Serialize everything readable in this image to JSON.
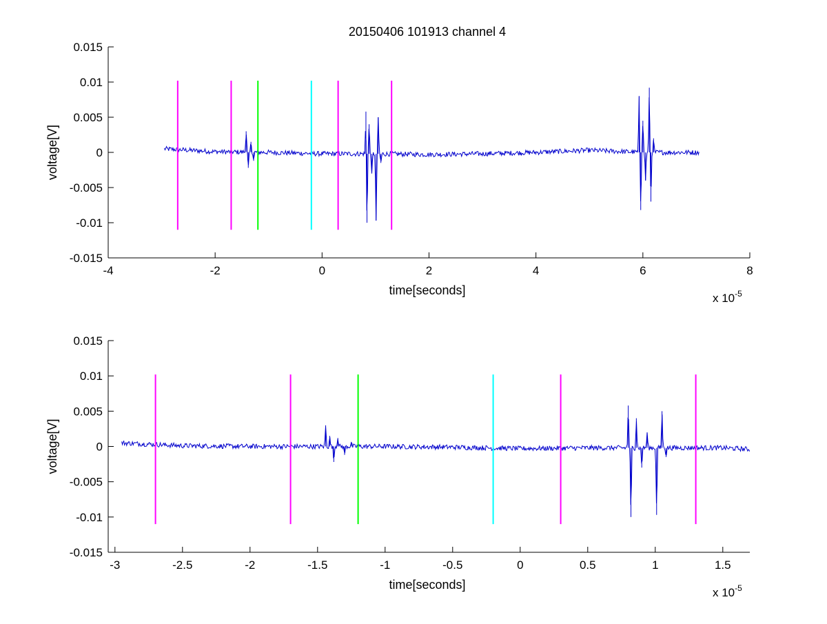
{
  "figure": {
    "title": "20150406 101913 channel 4",
    "colors": {
      "signal": "#0000cc",
      "magenta": "#ff00ff",
      "green": "#00ff00",
      "cyan": "#00ffff",
      "axes": "#000000"
    }
  },
  "chart_data": [
    {
      "type": "line",
      "title": "20150406 101913 channel 4",
      "xlabel": "time[seconds]",
      "ylabel": "voltage[V]",
      "x_multiplier_label": "x 10",
      "x_multiplier_exp": "-5",
      "xlim": [
        -4,
        8
      ],
      "ylim": [
        -0.015,
        0.015
      ],
      "x_unit_scale": 1e-05,
      "x_ticks": [
        -4,
        -2,
        0,
        2,
        4,
        6,
        8
      ],
      "x_tick_labels": [
        "-4",
        "-2",
        "0",
        "2",
        "4",
        "6",
        "8"
      ],
      "y_ticks": [
        -0.015,
        -0.01,
        -0.005,
        0,
        0.005,
        0.01,
        0.015
      ],
      "y_tick_labels": [
        "-0.015",
        "-0.01",
        "-0.005",
        "0",
        "0.005",
        "0.01",
        "0.015"
      ],
      "grid": false,
      "series": [
        {
          "color": "#0000cc",
          "x_range": [
            -2.95,
            7.05
          ],
          "baseline_points": [
            [
              -2.95,
              0.0005
            ],
            [
              -2.0,
              0.0001
            ],
            [
              -1.0,
              0.0
            ],
            [
              0.0,
              -0.0002
            ],
            [
              1.0,
              -0.0002
            ],
            [
              2.0,
              -0.0003
            ],
            [
              3.0,
              -0.0002
            ],
            [
              4.0,
              0.0
            ],
            [
              5.0,
              0.0003
            ],
            [
              6.0,
              0.0
            ],
            [
              7.05,
              0.0
            ]
          ],
          "bursts": [
            {
              "peaks": [
                [
                  -1.42,
                  0.003
                ],
                [
                  -1.38,
                  -0.0022
                ],
                [
                  -1.33,
                  0.0015
                ],
                [
                  -1.28,
                  -0.0012
                ]
              ]
            },
            {
              "peaks": [
                [
                  0.82,
                  0.0058
                ],
                [
                  0.84,
                  -0.01
                ],
                [
                  0.88,
                  0.004
                ],
                [
                  0.93,
                  -0.003
                ],
                [
                  1.01,
                  -0.0097
                ],
                [
                  1.05,
                  0.005
                ],
                [
                  1.1,
                  -0.0015
                ]
              ]
            },
            {
              "peaks": [
                [
                  5.93,
                  0.008
                ],
                [
                  5.96,
                  -0.0082
                ],
                [
                  6.0,
                  0.0045
                ],
                [
                  6.05,
                  -0.004
                ],
                [
                  6.12,
                  0.0092
                ],
                [
                  6.15,
                  -0.007
                ],
                [
                  6.2,
                  0.002
                ]
              ]
            }
          ]
        }
      ],
      "markers": [
        {
          "x": -2.7,
          "y_range": [
            -0.011,
            0.0102
          ],
          "color": "#ff00ff"
        },
        {
          "x": -1.7,
          "y_range": [
            -0.011,
            0.0102
          ],
          "color": "#ff00ff"
        },
        {
          "x": -1.2,
          "y_range": [
            -0.011,
            0.0102
          ],
          "color": "#00ff00"
        },
        {
          "x": -0.2,
          "y_range": [
            -0.011,
            0.0102
          ],
          "color": "#00ffff"
        },
        {
          "x": 0.3,
          "y_range": [
            -0.011,
            0.0102
          ],
          "color": "#ff00ff"
        },
        {
          "x": 1.3,
          "y_range": [
            -0.011,
            0.0102
          ],
          "color": "#ff00ff"
        }
      ]
    },
    {
      "type": "line",
      "title": "",
      "xlabel": "time[seconds]",
      "ylabel": "voltage[V]",
      "x_multiplier_label": "x 10",
      "x_multiplier_exp": "-5",
      "xlim": [
        -3.05,
        1.7
      ],
      "ylim": [
        -0.015,
        0.015
      ],
      "x_unit_scale": 1e-05,
      "x_ticks": [
        -3,
        -2.5,
        -2,
        -1.5,
        -1,
        -0.5,
        0,
        0.5,
        1,
        1.5
      ],
      "x_tick_labels": [
        "-3",
        "-2.5",
        "-2",
        "-1.5",
        "-1",
        "-0.5",
        "0",
        "0.5",
        "1",
        "1.5"
      ],
      "y_ticks": [
        -0.015,
        -0.01,
        -0.005,
        0,
        0.005,
        0.01,
        0.015
      ],
      "y_tick_labels": [
        "-0.015",
        "-0.01",
        "-0.005",
        "0",
        "0.005",
        "0.01",
        "0.015"
      ],
      "grid": false,
      "series": [
        {
          "color": "#0000cc",
          "x_range": [
            -2.95,
            1.7
          ],
          "baseline_points": [
            [
              -2.95,
              0.0005
            ],
            [
              -2.5,
              0.0001
            ],
            [
              -2.0,
              0.0
            ],
            [
              -1.5,
              0.0
            ],
            [
              -1.0,
              0.0
            ],
            [
              -0.5,
              -0.0001
            ],
            [
              0.0,
              -0.0003
            ],
            [
              0.5,
              -0.0002
            ],
            [
              1.0,
              -0.0002
            ],
            [
              1.5,
              -0.0002
            ],
            [
              1.7,
              -0.0004
            ]
          ],
          "bursts": [
            {
              "peaks": [
                [
                  -1.44,
                  0.003
                ],
                [
                  -1.41,
                  0.0015
                ],
                [
                  -1.38,
                  -0.0022
                ],
                [
                  -1.35,
                  0.0012
                ],
                [
                  -1.3,
                  -0.0012
                ],
                [
                  -1.25,
                  0.0006
                ]
              ]
            },
            {
              "peaks": [
                [
                  0.8,
                  0.0058
                ],
                [
                  0.82,
                  -0.01
                ],
                [
                  0.86,
                  0.004
                ],
                [
                  0.9,
                  -0.003
                ],
                [
                  0.94,
                  0.002
                ],
                [
                  1.01,
                  -0.0097
                ],
                [
                  1.05,
                  0.005
                ],
                [
                  1.08,
                  -0.0015
                ]
              ]
            }
          ]
        }
      ],
      "markers": [
        {
          "x": -2.7,
          "y_range": [
            -0.011,
            0.0102
          ],
          "color": "#ff00ff"
        },
        {
          "x": -1.7,
          "y_range": [
            -0.011,
            0.0102
          ],
          "color": "#ff00ff"
        },
        {
          "x": -1.2,
          "y_range": [
            -0.011,
            0.0102
          ],
          "color": "#00ff00"
        },
        {
          "x": -0.2,
          "y_range": [
            -0.011,
            0.0102
          ],
          "color": "#00ffff"
        },
        {
          "x": 0.3,
          "y_range": [
            -0.011,
            0.0102
          ],
          "color": "#ff00ff"
        },
        {
          "x": 1.3,
          "y_range": [
            -0.011,
            0.0102
          ],
          "color": "#ff00ff"
        }
      ]
    }
  ]
}
